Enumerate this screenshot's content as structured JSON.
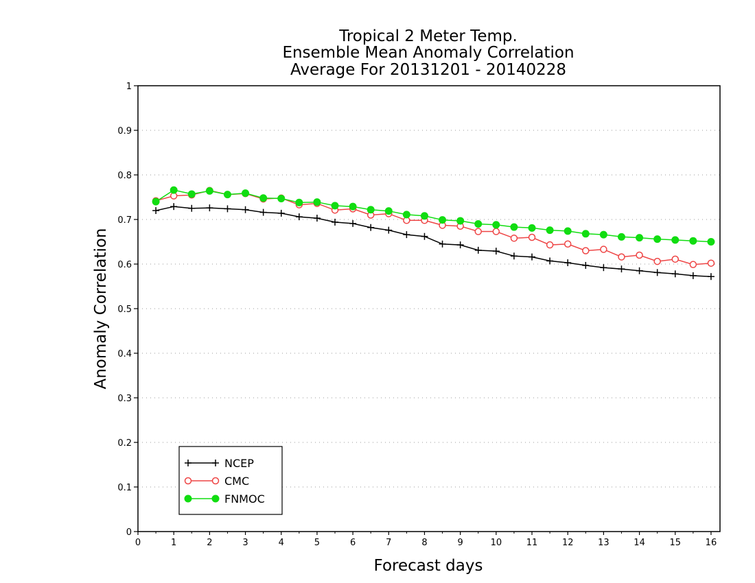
{
  "chart_data": {
    "type": "line",
    "title": [
      "Tropical 2 Meter Temp.",
      "Ensemble Mean Anomaly Correlation",
      "Average For 20131201 - 20140228"
    ],
    "xlabel": "Forecast days",
    "ylabel": "Anomaly Correlation",
    "xlim": [
      0,
      16.25
    ],
    "ylim": [
      0,
      1
    ],
    "xticks": [
      "0",
      "1",
      "2",
      "3",
      "4",
      "5",
      "6",
      "7",
      "8",
      "9",
      "10",
      "11",
      "12",
      "13",
      "14",
      "15",
      "16"
    ],
    "yticks": [
      "0",
      "0.1",
      "0.2",
      "0.3",
      "0.4",
      "0.5",
      "0.6",
      "0.7",
      "0.8",
      "0.9",
      "1"
    ],
    "grid": "horizontal-dotted",
    "legend": "bottom-left",
    "x": [
      0.5,
      1,
      1.5,
      2,
      2.5,
      3,
      3.5,
      4,
      4.5,
      5,
      5.5,
      6,
      6.5,
      7,
      7.5,
      8,
      8.5,
      9,
      9.5,
      10,
      10.5,
      11,
      11.5,
      12,
      12.5,
      13,
      13.5,
      14,
      14.5,
      15,
      15.5,
      16
    ],
    "series": [
      {
        "name": "NCEP",
        "color": "#000000",
        "marker": "plus",
        "values": [
          0.72,
          0.729,
          0.725,
          0.726,
          0.724,
          0.722,
          0.716,
          0.714,
          0.706,
          0.703,
          0.694,
          0.691,
          0.682,
          0.676,
          0.666,
          0.662,
          0.645,
          0.643,
          0.631,
          0.629,
          0.618,
          0.616,
          0.607,
          0.603,
          0.597,
          0.592,
          0.589,
          0.585,
          0.581,
          0.578,
          0.574,
          0.572
        ]
      },
      {
        "name": "CMC",
        "color": "#ee4444",
        "marker": "open-circle",
        "values": [
          0.742,
          0.753,
          0.755,
          0.765,
          0.756,
          0.758,
          0.746,
          0.748,
          0.733,
          0.736,
          0.721,
          0.724,
          0.71,
          0.713,
          0.698,
          0.698,
          0.687,
          0.685,
          0.673,
          0.673,
          0.658,
          0.66,
          0.643,
          0.645,
          0.63,
          0.633,
          0.616,
          0.62,
          0.606,
          0.611,
          0.599,
          0.602
        ]
      },
      {
        "name": "FNMOC",
        "color": "#11dd11",
        "marker": "filled-circle",
        "values": [
          0.74,
          0.766,
          0.757,
          0.764,
          0.756,
          0.759,
          0.748,
          0.747,
          0.738,
          0.739,
          0.731,
          0.729,
          0.722,
          0.719,
          0.711,
          0.708,
          0.699,
          0.697,
          0.69,
          0.688,
          0.683,
          0.681,
          0.676,
          0.674,
          0.668,
          0.666,
          0.661,
          0.659,
          0.656,
          0.654,
          0.652,
          0.65
        ]
      }
    ]
  }
}
